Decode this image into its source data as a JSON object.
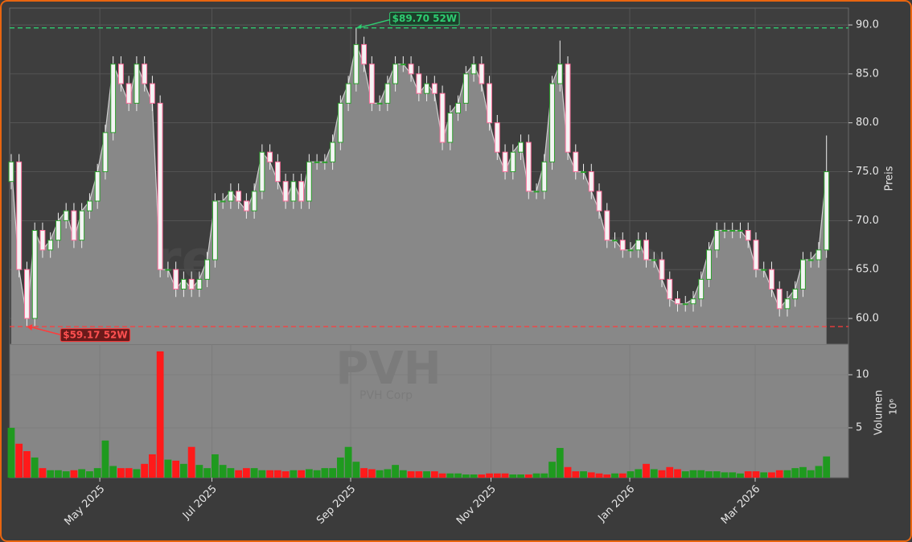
{
  "chart_data": {
    "type": "candlestick",
    "watermark": "forexsignale.trade",
    "title": "PVH",
    "subtitle": "PVH Corp",
    "ylabel": "Preis",
    "grid": true,
    "up_color": "#2ca02c",
    "down_color": "#ff6f9c",
    "area_color": "#888888",
    "line_color": "#cfcfcf",
    "xlim": [
      -0.2,
      106.8
    ],
    "xticks": [
      {
        "value": 11.3,
        "label": "May 2025"
      },
      {
        "value": 25.6,
        "label": "Jul 2025"
      },
      {
        "value": 43.3,
        "label": "Sep 2025"
      },
      {
        "value": 61.2,
        "label": "Nov 2025"
      },
      {
        "value": 78.9,
        "label": "Jan 2026"
      },
      {
        "value": 94.9,
        "label": "Mar 2026"
      }
    ],
    "ylim": [
      57.37,
      91.73
    ],
    "yticks": [
      {
        "value": 60,
        "label": "60.0"
      },
      {
        "value": 65,
        "label": "65.0"
      },
      {
        "value": 70,
        "label": "70.0"
      },
      {
        "value": 75,
        "label": "75.0"
      },
      {
        "value": 80,
        "label": "80.0"
      },
      {
        "value": 85,
        "label": "85.0"
      },
      {
        "value": 90,
        "label": "90.0"
      }
    ],
    "open": [
      74,
      76,
      65,
      60,
      69,
      67,
      68,
      70,
      71,
      68,
      71,
      72,
      75,
      79,
      86,
      84,
      82,
      86,
      84,
      82,
      65,
      65,
      63,
      64,
      63,
      64,
      66,
      72,
      72,
      73,
      72,
      71,
      73,
      77,
      76,
      74,
      72,
      74,
      72,
      76,
      76,
      76,
      78,
      82,
      84,
      88,
      86,
      82,
      82,
      84,
      86,
      86,
      85,
      83,
      84,
      83,
      78,
      81,
      82,
      85,
      86,
      84,
      80,
      77,
      75,
      77,
      78,
      73,
      73,
      76,
      84,
      86,
      77,
      75,
      75,
      73,
      71,
      68,
      68,
      67,
      67,
      68,
      66,
      66,
      64,
      62,
      61.5,
      61.5,
      62,
      64,
      67,
      69,
      69,
      69,
      69,
      68,
      65,
      65,
      63,
      61,
      62,
      63,
      66,
      66,
      67
    ],
    "high": [
      76.8,
      76.8,
      65.8,
      69.8,
      69.8,
      68.8,
      70.8,
      71.8,
      71.8,
      71.8,
      72.8,
      75.8,
      79.8,
      86.8,
      86.8,
      84.8,
      86.8,
      86.8,
      84.8,
      82.8,
      65.8,
      65.8,
      64.8,
      64.8,
      64.8,
      66.8,
      72.8,
      72.8,
      73.8,
      73.8,
      72.8,
      73.8,
      77.8,
      77.8,
      76.8,
      74.8,
      74.8,
      74.8,
      76.8,
      76.8,
      76.8,
      78.8,
      82.8,
      84.8,
      89.7,
      88.8,
      86.8,
      82.8,
      84.8,
      86.8,
      86.8,
      86.8,
      85.8,
      84.8,
      84.8,
      83.8,
      81.8,
      82.8,
      85.8,
      86.8,
      86.8,
      84.8,
      80.8,
      77.8,
      77.8,
      78.8,
      78.8,
      73.8,
      76.8,
      84.8,
      88.4,
      86.8,
      77.8,
      75.8,
      75.8,
      73.8,
      71.8,
      68.8,
      68.8,
      67.8,
      68.8,
      68.8,
      66.8,
      66.8,
      64.8,
      62.8,
      62.3,
      62.8,
      64.8,
      67.8,
      69.8,
      69.8,
      69.8,
      69.8,
      69.8,
      68.8,
      65.8,
      65.8,
      63.8,
      62.8,
      63.8,
      66.8,
      66.8,
      67.8,
      78.7
    ],
    "low": [
      73.2,
      64.2,
      59.17,
      59.2,
      66.2,
      66.2,
      67.2,
      69.2,
      67.2,
      67.2,
      70.2,
      71.2,
      74.2,
      78.2,
      83.2,
      81.2,
      81.2,
      83.2,
      81.2,
      64.2,
      64.2,
      62.2,
      62.2,
      62.2,
      62.2,
      63.2,
      65.2,
      71.2,
      71.2,
      71.2,
      70.2,
      70.2,
      72.2,
      75.2,
      73.2,
      71.2,
      71.2,
      71.2,
      71.2,
      75.2,
      75.2,
      75.2,
      77.2,
      81.2,
      83.2,
      85.2,
      81.2,
      81.2,
      81.2,
      83.2,
      85.2,
      84.2,
      82.2,
      82.2,
      82.2,
      77.2,
      77.2,
      80.2,
      81.2,
      84.2,
      83.2,
      79.2,
      76.2,
      74.2,
      74.2,
      76.2,
      72.2,
      72.2,
      72.2,
      75.2,
      83.2,
      76.2,
      74.2,
      74.2,
      72.2,
      70.2,
      67.2,
      67.2,
      66.2,
      66.2,
      66.2,
      65.2,
      65.2,
      63.2,
      61.2,
      60.7,
      60.7,
      60.7,
      61.2,
      63.2,
      66.2,
      68.2,
      68.2,
      68.2,
      67.2,
      64.2,
      64.2,
      62.2,
      60.2,
      60.2,
      61.2,
      62.2,
      65.2,
      65.2,
      66.2
    ],
    "close": [
      76,
      65,
      60,
      69,
      67,
      68,
      70,
      71,
      68,
      71,
      72,
      75,
      79,
      86,
      84,
      82,
      86,
      84,
      82,
      65,
      65,
      63,
      64,
      63,
      64,
      66,
      72,
      72,
      73,
      72,
      71,
      73,
      77,
      76,
      74,
      72,
      74,
      72,
      76,
      76,
      76,
      78,
      82,
      84,
      88,
      86,
      82,
      82,
      84,
      86,
      86,
      85,
      83,
      84,
      83,
      78,
      81,
      82,
      85,
      86,
      84,
      80,
      77,
      75,
      77,
      78,
      73,
      73,
      76,
      84,
      86,
      77,
      75,
      75,
      73,
      71,
      68,
      68,
      67,
      67,
      68,
      66,
      66,
      64,
      62,
      61.5,
      61.5,
      62,
      64,
      67,
      69,
      69,
      69,
      69,
      68,
      65,
      65,
      63,
      61,
      62,
      63,
      66,
      66,
      67,
      75
    ],
    "annotations": [
      {
        "value": 89.7,
        "label": "$89.70 52W",
        "color": "#2ecc71"
      },
      {
        "value": 59.17,
        "label": "$59.17 52W",
        "color": "#ff3b3b"
      }
    ],
    "volume": {
      "ylabel": "Volumen",
      "offset_label": "10⁶",
      "up_color": "#1f9a1f",
      "down_color": "#ff1a1a",
      "background": "#868686",
      "ylim": [
        0.3,
        12.88
      ],
      "yticks": [
        5,
        10
      ],
      "values": [
        5.0,
        3.5,
        2.8,
        2.2,
        1.2,
        1.0,
        1.0,
        0.9,
        1.0,
        1.1,
        0.9,
        1.2,
        3.8,
        1.4,
        1.2,
        1.2,
        1.1,
        1.6,
        2.5,
        12.2,
        2.0,
        1.9,
        1.6,
        3.2,
        1.5,
        1.2,
        2.5,
        1.5,
        1.2,
        1.0,
        1.2,
        1.2,
        1.0,
        1.0,
        1.0,
        0.9,
        1.0,
        1.0,
        1.1,
        1.0,
        1.2,
        1.2,
        2.2,
        3.2,
        1.8,
        1.2,
        1.1,
        1.0,
        1.1,
        1.5,
        1.0,
        0.9,
        0.9,
        0.9,
        0.9,
        0.7,
        0.7,
        0.7,
        0.6,
        0.6,
        0.6,
        0.7,
        0.7,
        0.7,
        0.6,
        0.6,
        0.6,
        0.7,
        0.7,
        1.8,
        3.1,
        1.3,
        0.9,
        0.9,
        0.8,
        0.7,
        0.6,
        0.7,
        0.7,
        0.9,
        1.1,
        1.6,
        1.1,
        1.0,
        1.3,
        1.1,
        0.9,
        1.0,
        1.0,
        0.9,
        0.9,
        0.8,
        0.8,
        0.7,
        0.9,
        0.9,
        0.8,
        0.8,
        1.0,
        1.0,
        1.2,
        1.3,
        1.0,
        1.4,
        2.3
      ]
    }
  }
}
